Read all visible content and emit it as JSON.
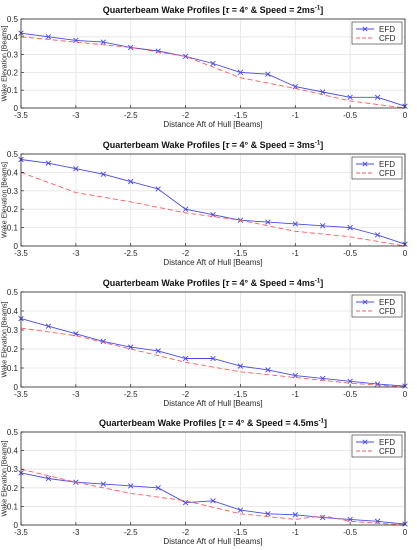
{
  "chart_data": [
    {
      "type": "line",
      "title_prefix": "Quarterbeam Wake Profiles [",
      "title_tau": "τ",
      "title_mid": " = 4° & Speed = 2ms",
      "title_sup": "-1",
      "title_suffix": "]",
      "xlabel": "Distance Aft of Hull [Beams]",
      "ylabel": "Wake Elevation [Beams]",
      "xlim": [
        -3.5,
        0
      ],
      "ylim": [
        0,
        0.5
      ],
      "xticks": [
        "-3.5",
        "-3",
        "-2.5",
        "-2",
        "-1.5",
        "-1",
        "-0.5",
        "0"
      ],
      "yticks": [
        "0",
        "0.1",
        "0.2",
        "0.3",
        "0.4",
        "0.5"
      ],
      "grid": true,
      "legend_position": "top-right",
      "series": [
        {
          "name": "EFD",
          "color": "#4a4ae8",
          "style": "solid",
          "marker": "x",
          "x": [
            -3.5,
            -3.25,
            -3.0,
            -2.75,
            -2.5,
            -2.25,
            -2.0,
            -1.75,
            -1.5,
            -1.25,
            -1.0,
            -0.75,
            -0.5,
            -0.25,
            0
          ],
          "y": [
            0.42,
            0.4,
            0.38,
            0.37,
            0.34,
            0.32,
            0.29,
            0.25,
            0.2,
            0.19,
            0.12,
            0.09,
            0.06,
            0.06,
            0.01
          ]
        },
        {
          "name": "CFD",
          "color": "#ff5a5a",
          "style": "dashed",
          "x": [
            -3.5,
            -3.0,
            -2.5,
            -2.0,
            -1.5,
            -1.0,
            -0.5,
            0
          ],
          "y": [
            0.4,
            0.37,
            0.34,
            0.29,
            0.17,
            0.11,
            0.04,
            0.0
          ]
        }
      ]
    },
    {
      "type": "line",
      "title_prefix": "Quarterbeam Wake Profiles [",
      "title_tau": "τ",
      "title_mid": " = 4° & Speed = 3ms",
      "title_sup": "-1",
      "title_suffix": "]",
      "xlabel": "Distance Aft of Hull [Beams]",
      "ylabel": "Wake Elevation [Beams]",
      "xlim": [
        -3.5,
        0
      ],
      "ylim": [
        0,
        0.5
      ],
      "xticks": [
        "-3.5",
        "-3",
        "-2.5",
        "-2",
        "-1.5",
        "-1",
        "-0.5",
        "0"
      ],
      "yticks": [
        "0",
        "0.1",
        "0.2",
        "0.3",
        "0.4",
        "0.5"
      ],
      "grid": true,
      "legend_position": "top-right",
      "series": [
        {
          "name": "EFD",
          "color": "#4a4ae8",
          "style": "solid",
          "marker": "x",
          "x": [
            -3.5,
            -3.25,
            -3.0,
            -2.75,
            -2.5,
            -2.25,
            -2.0,
            -1.75,
            -1.5,
            -1.25,
            -1.0,
            -0.75,
            -0.5,
            -0.25,
            0
          ],
          "y": [
            0.47,
            0.45,
            0.42,
            0.39,
            0.35,
            0.31,
            0.2,
            0.17,
            0.14,
            0.13,
            0.12,
            0.11,
            0.1,
            0.06,
            0.01
          ]
        },
        {
          "name": "CFD",
          "color": "#ff5a5a",
          "style": "dashed",
          "x": [
            -3.5,
            -3.0,
            -2.5,
            -2.0,
            -1.5,
            -1.0,
            -0.5,
            0
          ],
          "y": [
            0.4,
            0.29,
            0.24,
            0.18,
            0.14,
            0.08,
            0.05,
            0.0
          ]
        }
      ]
    },
    {
      "type": "line",
      "title_prefix": "Quarterbeam Wake Profiles [",
      "title_tau": "τ",
      "title_mid": " = 4° & Speed = 4ms",
      "title_sup": "-1",
      "title_suffix": "]",
      "xlabel": "Distance Aft of Hull [Beams]",
      "ylabel": "Wake Elevation [Beams]",
      "xlim": [
        -3.5,
        0
      ],
      "ylim": [
        0,
        0.5
      ],
      "xticks": [
        "-3.5",
        "-3",
        "-2.5",
        "-2",
        "-1.5",
        "-1",
        "-0.5",
        "0"
      ],
      "yticks": [
        "0",
        "0.1",
        "0.2",
        "0.3",
        "0.4",
        "0.5"
      ],
      "grid": true,
      "legend_position": "top-right",
      "series": [
        {
          "name": "EFD",
          "color": "#4a4ae8",
          "style": "solid",
          "marker": "x",
          "x": [
            -3.5,
            -3.25,
            -3.0,
            -2.75,
            -2.5,
            -2.25,
            -2.0,
            -1.75,
            -1.5,
            -1.25,
            -1.0,
            -0.75,
            -0.5,
            -0.25,
            0
          ],
          "y": [
            0.36,
            0.32,
            0.28,
            0.24,
            0.21,
            0.19,
            0.15,
            0.15,
            0.11,
            0.09,
            0.06,
            0.045,
            0.03,
            0.015,
            0.005
          ]
        },
        {
          "name": "CFD",
          "color": "#ff5a5a",
          "style": "dashed",
          "x": [
            -3.5,
            -3.0,
            -2.5,
            -2.0,
            -1.5,
            -1.0,
            -0.5,
            0
          ],
          "y": [
            0.31,
            0.27,
            0.2,
            0.13,
            0.08,
            0.05,
            0.02,
            0.0
          ]
        }
      ]
    },
    {
      "type": "line",
      "title_prefix": "Quarterbeam Wake Profiles [",
      "title_tau": "τ",
      "title_mid": " = 4° & Speed = 4.5ms",
      "title_sup": "-1",
      "title_suffix": "]",
      "xlabel": "Distance Aft of Hull [Beams]",
      "ylabel": "Wake Elevation [Beams]",
      "xlim": [
        -3.5,
        0
      ],
      "ylim": [
        0,
        0.5
      ],
      "xticks": [
        "-3.5",
        "-3",
        "-2.5",
        "-2",
        "-1.5",
        "-1",
        "-0.5",
        "0"
      ],
      "yticks": [
        "0",
        "0.1",
        "0.2",
        "0.3",
        "0.4",
        "0.5"
      ],
      "grid": true,
      "legend_position": "top-right",
      "series": [
        {
          "name": "EFD",
          "color": "#4a4ae8",
          "style": "solid",
          "marker": "x",
          "x": [
            -3.5,
            -3.25,
            -3.0,
            -2.75,
            -2.5,
            -2.25,
            -2.0,
            -1.75,
            -1.5,
            -1.25,
            -1.0,
            -0.75,
            -0.5,
            -0.25,
            0
          ],
          "y": [
            0.28,
            0.25,
            0.23,
            0.22,
            0.21,
            0.2,
            0.12,
            0.13,
            0.08,
            0.06,
            0.055,
            0.04,
            0.03,
            0.02,
            0.005
          ]
        },
        {
          "name": "CFD",
          "color": "#ff5a5a",
          "style": "dashed",
          "x": [
            -3.5,
            -3.0,
            -2.5,
            -2.0,
            -1.5,
            -1.0,
            -0.75,
            -0.5,
            0
          ],
          "y": [
            0.3,
            0.23,
            0.17,
            0.13,
            0.06,
            0.03,
            0.05,
            0.02,
            0.0
          ]
        }
      ]
    }
  ]
}
